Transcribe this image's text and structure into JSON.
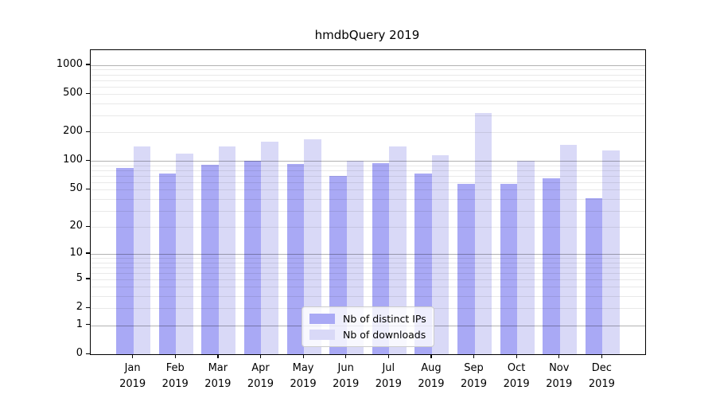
{
  "chart_data": {
    "type": "bar",
    "title": "hmdbQuery 2019",
    "categories": [
      "Jan",
      "Feb",
      "Mar",
      "Apr",
      "May",
      "Jun",
      "Jul",
      "Aug",
      "Sep",
      "Oct",
      "Nov",
      "Dec"
    ],
    "category_year": "2019",
    "series": [
      {
        "name": "Nb of distinct IPs",
        "color": "#a9a9f5",
        "values": [
          85,
          74,
          91,
          100,
          94,
          70,
          95,
          74,
          58,
          58,
          66,
          41
        ]
      },
      {
        "name": "Nb of downloads",
        "color": "#d9d9f7",
        "values": [
          142,
          120,
          142,
          160,
          168,
          101,
          142,
          115,
          320,
          101,
          148,
          130
        ]
      }
    ],
    "y_ticks": [
      0,
      1,
      2,
      5,
      10,
      20,
      50,
      100,
      200,
      500,
      1000
    ],
    "y_major_gridlines": [
      1,
      10,
      100,
      1000
    ],
    "y_minor_gridlines": [
      2,
      3,
      4,
      5,
      6,
      7,
      8,
      9,
      20,
      30,
      40,
      50,
      60,
      70,
      80,
      90,
      200,
      300,
      400,
      500,
      600,
      700,
      800,
      900
    ],
    "scale": "log(value+1)",
    "ylim": [
      0,
      1430
    ],
    "grid": true,
    "legend_position": "lower center",
    "legend_title": null
  }
}
